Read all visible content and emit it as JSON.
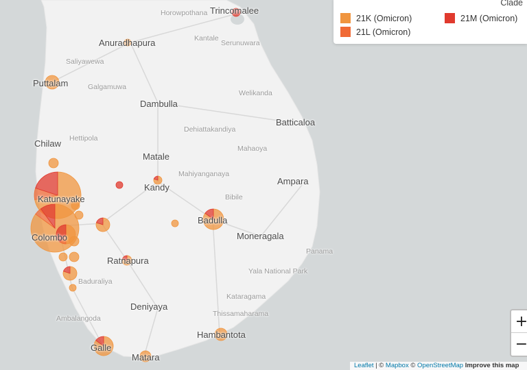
{
  "legend": {
    "title": "Clade",
    "items": [
      {
        "label": "21K (Omicron)",
        "color": "#f0953f"
      },
      {
        "label": "21L (Omicron)",
        "color": "#f06a35"
      },
      {
        "label": "21M (Omicron)",
        "color": "#e03a2e"
      }
    ]
  },
  "places": [
    {
      "id": "trincomalee",
      "name": "Trincomalee",
      "tier": "major"
    },
    {
      "id": "horowpothana",
      "name": "Horowpothana",
      "tier": "minor"
    },
    {
      "id": "anuradhapura",
      "name": "Anuradhapura",
      "tier": "major"
    },
    {
      "id": "kantale",
      "name": "Kantale",
      "tier": "minor"
    },
    {
      "id": "seruwawila",
      "name": "Serunuwara",
      "tier": "minor"
    },
    {
      "id": "saliyawewa",
      "name": "Saliyawewa",
      "tier": "minor"
    },
    {
      "id": "puttalam",
      "name": "Puttalam",
      "tier": "major"
    },
    {
      "id": "galgamuwa",
      "name": "Galgamuwa",
      "tier": "minor"
    },
    {
      "id": "welikanda",
      "name": "Welikanda",
      "tier": "minor"
    },
    {
      "id": "dambulla",
      "name": "Dambulla",
      "tier": "major"
    },
    {
      "id": "batticaloa",
      "name": "Batticaloa",
      "tier": "major"
    },
    {
      "id": "dehiattakandiya",
      "name": "Dehiattakandiya",
      "tier": "minor"
    },
    {
      "id": "hettipola",
      "name": "Hettipola",
      "tier": "minor"
    },
    {
      "id": "chilaw",
      "name": "Chilaw",
      "tier": "major"
    },
    {
      "id": "mahaoya",
      "name": "Mahaoya",
      "tier": "minor"
    },
    {
      "id": "matale",
      "name": "Matale",
      "tier": "major"
    },
    {
      "id": "mahiyanganaya",
      "name": "Mahiyanganaya",
      "tier": "minor"
    },
    {
      "id": "kandy",
      "name": "Kandy",
      "tier": "major"
    },
    {
      "id": "ampara",
      "name": "Ampara",
      "tier": "major"
    },
    {
      "id": "bibile",
      "name": "Bibile",
      "tier": "minor"
    },
    {
      "id": "katunayake",
      "name": "Katunayake",
      "tier": "major"
    },
    {
      "id": "badulla",
      "name": "Badulla",
      "tier": "major"
    },
    {
      "id": "colombo",
      "name": "Colombo",
      "tier": "major"
    },
    {
      "id": "moneragala",
      "name": "Moneragala",
      "tier": "major"
    },
    {
      "id": "panama",
      "name": "Panama",
      "tier": "minor"
    },
    {
      "id": "ratnapura",
      "name": "Ratnapura",
      "tier": "major"
    },
    {
      "id": "yala",
      "name": "Yala National Park",
      "tier": "minor"
    },
    {
      "id": "baduraliya",
      "name": "Baduraliya",
      "tier": "minor"
    },
    {
      "id": "kataragama",
      "name": "Kataragama",
      "tier": "minor"
    },
    {
      "id": "deniyaya",
      "name": "Deniyaya",
      "tier": "major"
    },
    {
      "id": "thissamaharama",
      "name": "Thissamaharama",
      "tier": "minor"
    },
    {
      "id": "ambalangoda",
      "name": "Ambalangoda",
      "tier": "minor"
    },
    {
      "id": "hambantota",
      "name": "Hambantota",
      "tier": "major"
    },
    {
      "id": "galle",
      "name": "Galle",
      "tier": "major"
    },
    {
      "id": "matara",
      "name": "Matara",
      "tier": "major"
    }
  ],
  "zoom": {
    "in_label": "+",
    "out_label": "−"
  },
  "attribution": {
    "leaflet": "Leaflet",
    "sep": " | © ",
    "mapbox": "Mapbox",
    "osm_prefix": " © ",
    "osm": "OpenStreetMap",
    "improve": " Improve this map"
  }
}
